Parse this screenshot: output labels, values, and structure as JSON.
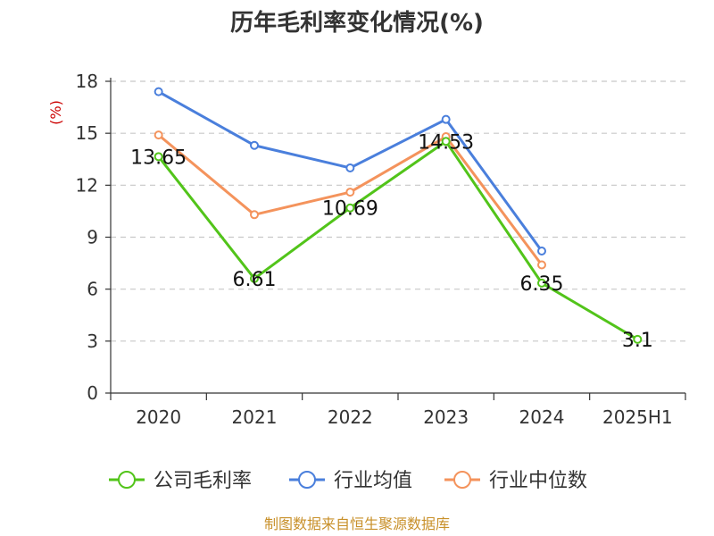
{
  "chart_data": {
    "type": "line",
    "title": "历年毛利率变化情况(%)",
    "ylabel": "(%)",
    "categories": [
      "2020",
      "2021",
      "2022",
      "2023",
      "2024",
      "2025H1"
    ],
    "ylim": [
      0,
      18
    ],
    "yticks": [
      0,
      3,
      6,
      9,
      12,
      15,
      18
    ],
    "grid": true,
    "legend_position": "bottom",
    "series": [
      {
        "name": "公司毛利率",
        "color": "#52c41a",
        "values": [
          13.65,
          6.61,
          10.69,
          14.53,
          6.35,
          3.1
        ],
        "labels": [
          "13.65",
          "6.61",
          "10.69",
          "14.53",
          "6.35",
          "3.1"
        ]
      },
      {
        "name": "行业均值",
        "color": "#4a7fdc",
        "values": [
          17.4,
          14.3,
          13.0,
          15.8,
          8.2,
          null
        ]
      },
      {
        "name": "行业中位数",
        "color": "#f4935c",
        "values": [
          14.9,
          10.3,
          11.6,
          14.8,
          7.4,
          null
        ]
      }
    ]
  },
  "source": "制图数据来自恒生聚源数据库"
}
